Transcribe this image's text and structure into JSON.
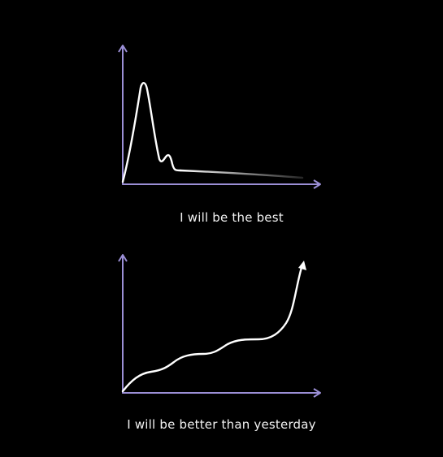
{
  "colors": {
    "background": "#000000",
    "axis": "#9b8fd6",
    "curve": "#ffffff",
    "text": "#f2f2f2"
  },
  "top_diagram": {
    "caption": "I will be the best",
    "shape": "early-spike-then-flat-decline"
  },
  "bottom_diagram": {
    "caption": "I will be better than yesterday",
    "shape": "steady-wavy-growth-with-arrow"
  }
}
